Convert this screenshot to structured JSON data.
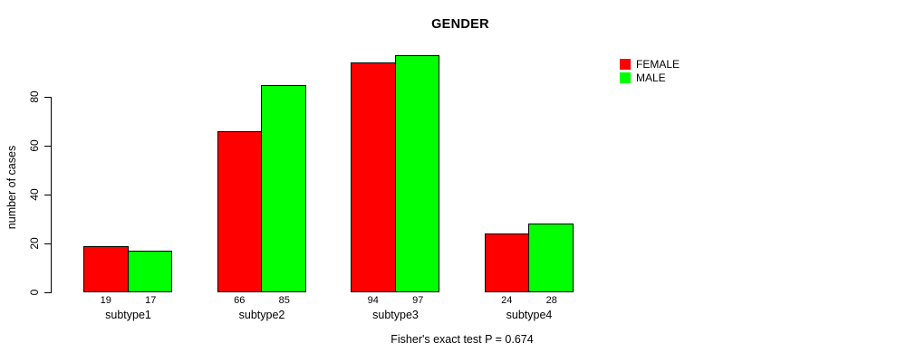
{
  "title": "GENDER",
  "caption": "Fisher's exact test P = 0.674",
  "y_axis_label": "number of cases",
  "colors": {
    "female": "#ff0000",
    "male": "#00ff00",
    "axis": "#000000",
    "background": "#ffffff"
  },
  "legend": {
    "position": "right",
    "entries": [
      {
        "label": "FEMALE",
        "color": "#ff0000"
      },
      {
        "label": "MALE",
        "color": "#00ff00"
      }
    ]
  },
  "chart_data": {
    "type": "bar",
    "title": "GENDER",
    "xlabel": "",
    "ylabel": "number of cases",
    "categories": [
      "subtype1",
      "subtype2",
      "subtype3",
      "subtype4"
    ],
    "series": [
      {
        "name": "FEMALE",
        "color": "#ff0000",
        "values": [
          19,
          66,
          94,
          24
        ]
      },
      {
        "name": "MALE",
        "color": "#00ff00",
        "values": [
          17,
          85,
          97,
          28
        ]
      }
    ],
    "bar_value_labels": [
      [
        19,
        66,
        94,
        24
      ],
      [
        17,
        85,
        97,
        28
      ]
    ],
    "yticks": [
      0,
      20,
      40,
      60,
      80
    ],
    "ylim": [
      0,
      100
    ],
    "grid": false,
    "legend_position": "top-right",
    "annotation": "Fisher's exact test P = 0.674"
  }
}
